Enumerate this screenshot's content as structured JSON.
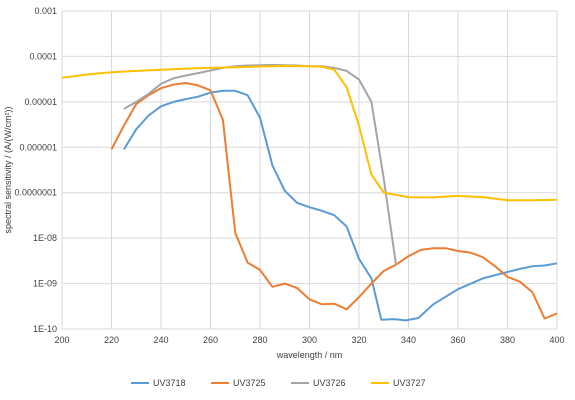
{
  "chart_data": {
    "type": "line",
    "title": "",
    "xlabel": "wavelength / nm",
    "ylabel": "spectral sensitivity / (A/(W/cm²))",
    "xlim": [
      200,
      400
    ],
    "ylim": [
      1e-10,
      0.001
    ],
    "y_scale": "log",
    "grid": true,
    "legend_position": "bottom",
    "x_ticks": [
      "200",
      "220",
      "240",
      "260",
      "280",
      "300",
      "320",
      "340",
      "360",
      "380",
      "400"
    ],
    "y_ticks": [
      "1E-10",
      "1E-09",
      "1E-08",
      "0.0000001",
      "0.000001",
      "0.00001",
      "0.0001",
      "0.001"
    ],
    "series": [
      {
        "name": "UV3718",
        "color": "#5b9bd5",
        "points": [
          [
            225,
            9e-07
          ],
          [
            230,
            2.5e-06
          ],
          [
            235,
            5e-06
          ],
          [
            240,
            8e-06
          ],
          [
            245,
            1e-05
          ],
          [
            250,
            1.15e-05
          ],
          [
            255,
            1.3e-05
          ],
          [
            260,
            1.6e-05
          ],
          [
            265,
            1.75e-05
          ],
          [
            270,
            1.75e-05
          ],
          [
            275,
            1.4e-05
          ],
          [
            280,
            4.5e-06
          ],
          [
            285,
            4e-07
          ],
          [
            290,
            1.1e-07
          ],
          [
            295,
            6e-08
          ],
          [
            300,
            4.8e-08
          ],
          [
            305,
            4e-08
          ],
          [
            310,
            3.2e-08
          ],
          [
            315,
            1.8e-08
          ],
          [
            320,
            3.5e-09
          ],
          [
            325,
            1.3e-09
          ],
          [
            329,
            1.6e-10
          ],
          [
            334,
            1.65e-10
          ],
          [
            339,
            1.55e-10
          ],
          [
            344,
            1.75e-10
          ],
          [
            350,
            3.5e-10
          ],
          [
            360,
            7.5e-10
          ],
          [
            370,
            1.3e-09
          ],
          [
            380,
            1.8e-09
          ],
          [
            385,
            2.1e-09
          ],
          [
            390,
            2.4e-09
          ],
          [
            395,
            2.5e-09
          ],
          [
            400,
            2.8e-09
          ]
        ]
      },
      {
        "name": "UV3725",
        "color": "#ed7d31",
        "points": [
          [
            220,
            9e-07
          ],
          [
            225,
            3e-06
          ],
          [
            230,
            9e-06
          ],
          [
            235,
            1.4e-05
          ],
          [
            240,
            2e-05
          ],
          [
            245,
            2.4e-05
          ],
          [
            250,
            2.6e-05
          ],
          [
            255,
            2.3e-05
          ],
          [
            260,
            1.8e-05
          ],
          [
            265,
            4e-06
          ],
          [
            270,
            1.3e-08
          ],
          [
            275,
            2.9e-09
          ],
          [
            280,
            2e-09
          ],
          [
            285,
            8.5e-10
          ],
          [
            290,
            1e-09
          ],
          [
            295,
            8e-10
          ],
          [
            300,
            4.5e-10
          ],
          [
            305,
            3.5e-10
          ],
          [
            310,
            3.6e-10
          ],
          [
            315,
            2.7e-10
          ],
          [
            320,
            5e-10
          ],
          [
            325,
            1e-09
          ],
          [
            330,
            1.9e-09
          ],
          [
            335,
            2.6e-09
          ],
          [
            340,
            4e-09
          ],
          [
            345,
            5.5e-09
          ],
          [
            350,
            6e-09
          ],
          [
            355,
            6e-09
          ],
          [
            360,
            5.2e-09
          ],
          [
            365,
            4.8e-09
          ],
          [
            370,
            3.8e-09
          ],
          [
            375,
            2.4e-09
          ],
          [
            380,
            1.4e-09
          ],
          [
            385,
            1.1e-09
          ],
          [
            390,
            6.5e-10
          ],
          [
            395,
            1.7e-10
          ],
          [
            400,
            2.2e-10
          ]
        ]
      },
      {
        "name": "UV3726",
        "color": "#a5a5a5",
        "points": [
          [
            225,
            7e-06
          ],
          [
            230,
            1e-05
          ],
          [
            235,
            1.5e-05
          ],
          [
            240,
            2.5e-05
          ],
          [
            245,
            3.3e-05
          ],
          [
            250,
            3.8e-05
          ],
          [
            255,
            4.3e-05
          ],
          [
            260,
            4.9e-05
          ],
          [
            265,
            5.6e-05
          ],
          [
            270,
            6.1e-05
          ],
          [
            275,
            6.3e-05
          ],
          [
            280,
            6.4e-05
          ],
          [
            285,
            6.5e-05
          ],
          [
            290,
            6.4e-05
          ],
          [
            295,
            6.3e-05
          ],
          [
            300,
            6.1e-05
          ],
          [
            305,
            6.1e-05
          ],
          [
            310,
            5.6e-05
          ],
          [
            315,
            4.8e-05
          ],
          [
            320,
            3.1e-05
          ],
          [
            325,
            1e-05
          ],
          [
            330,
            2e-07
          ],
          [
            335,
            2.5e-09
          ]
        ]
      },
      {
        "name": "UV3727",
        "color": "#ffc000",
        "points": [
          [
            200,
            3.4e-05
          ],
          [
            210,
            4e-05
          ],
          [
            220,
            4.5e-05
          ],
          [
            230,
            4.8e-05
          ],
          [
            240,
            5.1e-05
          ],
          [
            250,
            5.4e-05
          ],
          [
            260,
            5.6e-05
          ],
          [
            270,
            5.8e-05
          ],
          [
            280,
            6e-05
          ],
          [
            290,
            6.2e-05
          ],
          [
            300,
            6.1e-05
          ],
          [
            305,
            5.9e-05
          ],
          [
            310,
            5.1e-05
          ],
          [
            315,
            2.1e-05
          ],
          [
            320,
            3e-06
          ],
          [
            325,
            2.5e-07
          ],
          [
            330,
            1e-07
          ],
          [
            340,
            8e-08
          ],
          [
            345,
            7.9e-08
          ],
          [
            350,
            7.9e-08
          ],
          [
            360,
            8.5e-08
          ],
          [
            370,
            8e-08
          ],
          [
            380,
            6.8e-08
          ],
          [
            390,
            6.8e-08
          ],
          [
            400,
            7e-08
          ]
        ]
      }
    ]
  }
}
